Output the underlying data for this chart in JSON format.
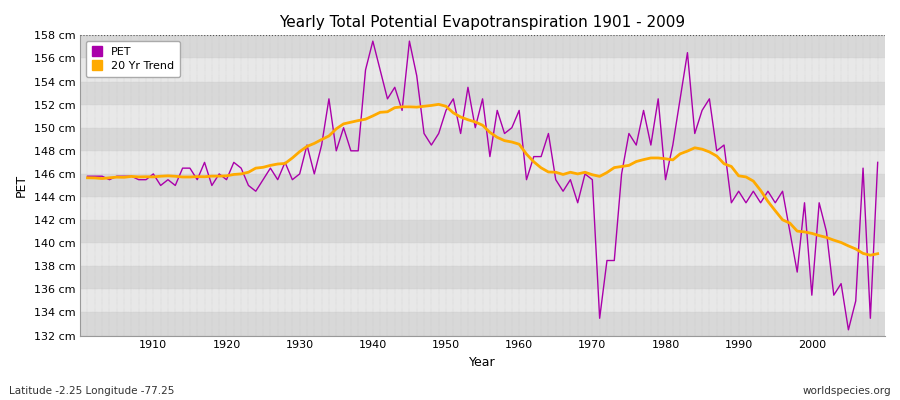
{
  "title": "Yearly Total Potential Evapotranspiration 1901 - 2009",
  "xlabel": "Year",
  "ylabel": "PET",
  "subtitle_left": "Latitude -2.25 Longitude -77.25",
  "subtitle_right": "worldspecies.org",
  "pet_color": "#aa00aa",
  "trend_color": "#ffaa00",
  "fig_bg_color": "#ffffff",
  "band_light": "#e8e8e8",
  "band_dark": "#d8d8d8",
  "grid_color": "#cccccc",
  "ylim": [
    132,
    158
  ],
  "ytick_step": 2,
  "years": [
    1901,
    1902,
    1903,
    1904,
    1905,
    1906,
    1907,
    1908,
    1909,
    1910,
    1911,
    1912,
    1913,
    1914,
    1915,
    1916,
    1917,
    1918,
    1919,
    1920,
    1921,
    1922,
    1923,
    1924,
    1925,
    1926,
    1927,
    1928,
    1929,
    1930,
    1931,
    1932,
    1933,
    1934,
    1935,
    1936,
    1937,
    1938,
    1939,
    1940,
    1941,
    1942,
    1943,
    1944,
    1945,
    1946,
    1947,
    1948,
    1949,
    1950,
    1951,
    1952,
    1953,
    1954,
    1955,
    1956,
    1957,
    1958,
    1959,
    1960,
    1961,
    1962,
    1963,
    1964,
    1965,
    1966,
    1967,
    1968,
    1969,
    1970,
    1971,
    1972,
    1973,
    1974,
    1975,
    1976,
    1977,
    1978,
    1979,
    1980,
    1981,
    1982,
    1983,
    1984,
    1985,
    1986,
    1987,
    1988,
    1989,
    1990,
    1991,
    1992,
    1993,
    1994,
    1995,
    1996,
    1997,
    1998,
    1999,
    2000,
    2001,
    2002,
    2003,
    2004,
    2005,
    2006,
    2007,
    2008,
    2009
  ],
  "pet": [
    145.8,
    145.8,
    145.8,
    145.5,
    145.8,
    145.8,
    145.8,
    145.5,
    145.5,
    146.0,
    145.0,
    145.5,
    145.0,
    146.5,
    146.5,
    145.5,
    147.0,
    145.0,
    146.0,
    145.5,
    147.0,
    146.5,
    145.0,
    144.5,
    145.5,
    146.5,
    145.5,
    147.0,
    145.5,
    146.0,
    148.5,
    146.0,
    148.5,
    152.5,
    148.0,
    150.0,
    148.0,
    148.0,
    155.0,
    157.5,
    155.0,
    152.5,
    153.5,
    151.5,
    157.5,
    154.5,
    149.5,
    148.5,
    149.5,
    151.5,
    152.5,
    149.5,
    153.5,
    150.0,
    152.5,
    147.5,
    151.5,
    149.5,
    150.0,
    151.5,
    145.5,
    147.5,
    147.5,
    149.5,
    145.5,
    144.5,
    145.5,
    143.5,
    146.0,
    145.5,
    133.5,
    138.5,
    138.5,
    146.0,
    149.5,
    148.5,
    151.5,
    148.5,
    152.5,
    145.5,
    148.5,
    152.5,
    156.5,
    149.5,
    151.5,
    152.5,
    148.0,
    148.5,
    143.5,
    144.5,
    143.5,
    144.5,
    143.5,
    144.5,
    143.5,
    144.5,
    141.0,
    137.5,
    143.5,
    135.5,
    143.5,
    141.0,
    135.5,
    136.5,
    132.5,
    135.0,
    146.5,
    133.5,
    147.0
  ],
  "xticks": [
    1910,
    1920,
    1930,
    1940,
    1950,
    1960,
    1970,
    1980,
    1990,
    2000
  ],
  "trend_window": 20
}
